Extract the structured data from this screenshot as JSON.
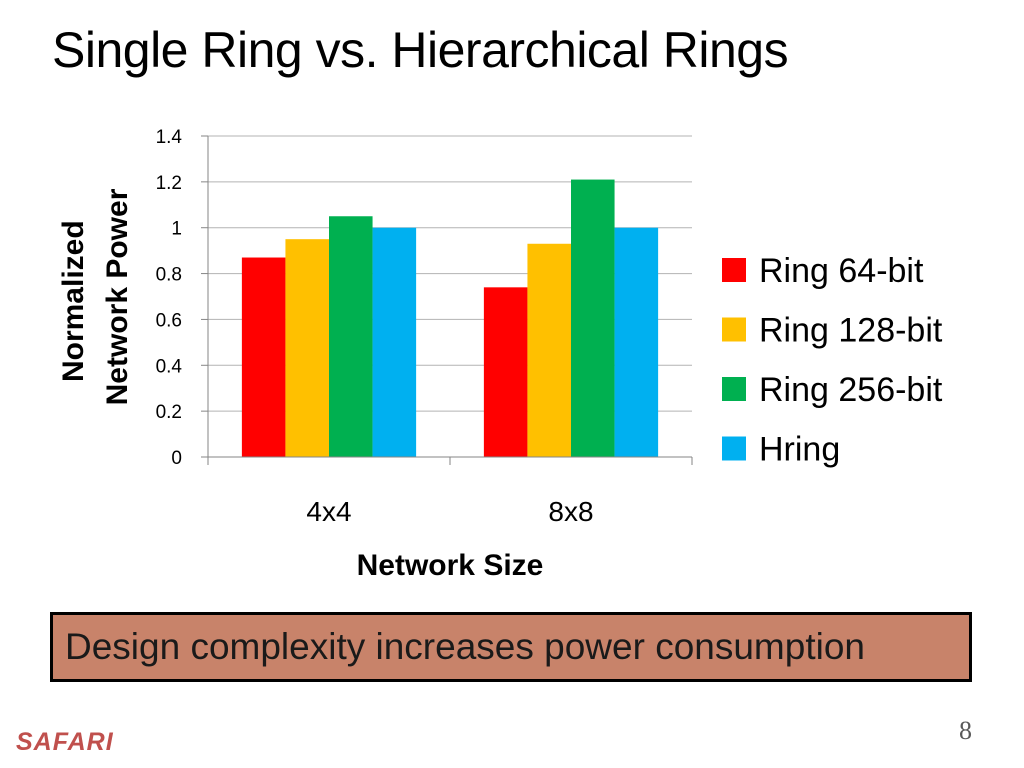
{
  "slide": {
    "title": "Single Ring vs. Hierarchical Rings",
    "callout": "Design complexity increases power consumption",
    "page_number": "8",
    "footer_logo": "SAFARI"
  },
  "chart_data": {
    "type": "bar",
    "title": "",
    "categories": [
      "4x4",
      "8x8"
    ],
    "series": [
      {
        "name": "Ring 64-bit",
        "color": "#ff0000",
        "values": [
          0.87,
          0.74
        ]
      },
      {
        "name": "Ring 128-bit",
        "color": "#ffc000",
        "values": [
          0.95,
          0.93
        ]
      },
      {
        "name": "Ring 256-bit",
        "color": "#00b050",
        "values": [
          1.05,
          1.21
        ]
      },
      {
        "name": "Hring",
        "color": "#00b0f0",
        "values": [
          1.0,
          1.0
        ]
      }
    ],
    "xlabel": "Network Size",
    "ylabel": [
      "Normalized",
      "Network Power"
    ],
    "ylim": [
      0,
      1.4
    ],
    "yticks": [
      "0",
      "0.2",
      "0.4",
      "0.6",
      "0.8",
      "1",
      "1.2",
      "1.4"
    ],
    "grid": true,
    "legend_position": "right"
  }
}
